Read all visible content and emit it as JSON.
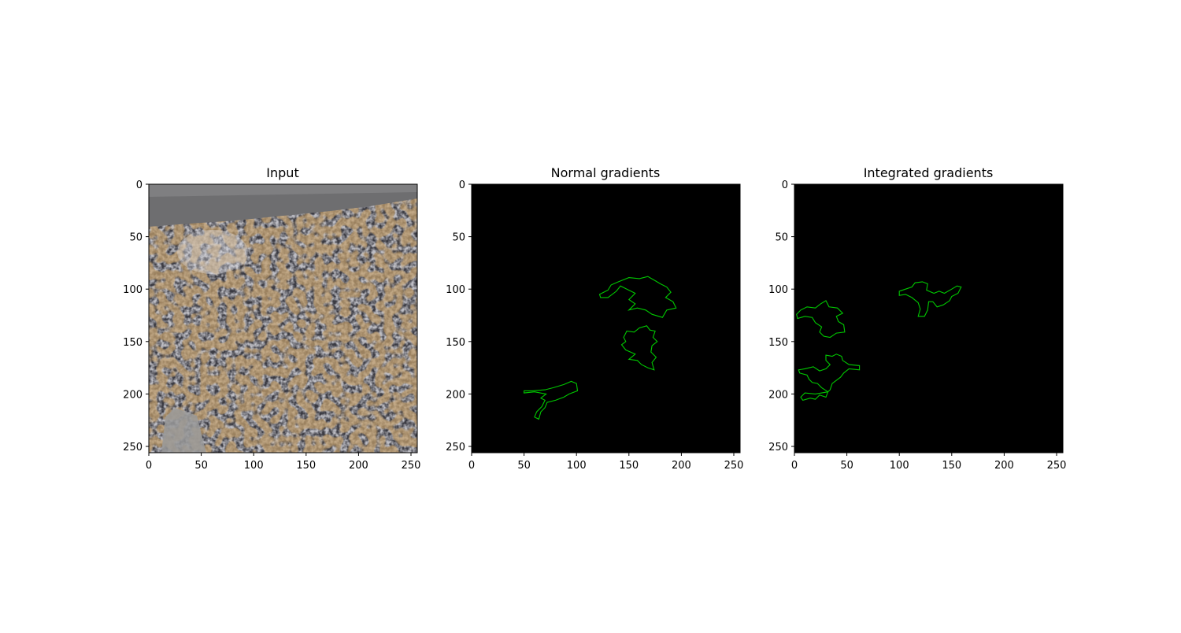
{
  "chart_data": [
    {
      "type": "image",
      "title": "Input",
      "xlim": [
        0,
        256
      ],
      "ylim": [
        256,
        0
      ],
      "xticks": [
        0,
        50,
        100,
        150,
        200,
        250
      ],
      "yticks": [
        0,
        50,
        100,
        150,
        200,
        250
      ],
      "content": "photo of crushed metallic ore fragments",
      "colors": {
        "fragments": "#c8c8d0",
        "dark": "#2a2a30",
        "rust": "#8a5a2a",
        "top_band": "#707070"
      }
    },
    {
      "type": "image",
      "title": "Normal gradients",
      "xlim": [
        0,
        256
      ],
      "ylim": [
        256,
        0
      ],
      "xticks": [
        0,
        50,
        100,
        150,
        200,
        250
      ],
      "yticks": [
        0,
        50,
        100,
        150,
        200,
        250
      ],
      "background": "#000000",
      "contour_color": "#00c800",
      "regions": [
        {
          "points": [
            [
              122,
              105
            ],
            [
              130,
              101
            ],
            [
              133,
              96
            ],
            [
              140,
              93
            ],
            [
              145,
              91
            ],
            [
              150,
              89
            ],
            [
              160,
              90
            ],
            [
              168,
              88
            ],
            [
              175,
              92
            ],
            [
              180,
              95
            ],
            [
              186,
              98
            ],
            [
              190,
              103
            ],
            [
              185,
              108
            ],
            [
              192,
              112
            ],
            [
              195,
              118
            ],
            [
              186,
              120
            ],
            [
              182,
              127
            ],
            [
              172,
              124
            ],
            [
              166,
              120
            ],
            [
              158,
              118
            ],
            [
              150,
              120
            ],
            [
              156,
              114
            ],
            [
              150,
              110
            ],
            [
              156,
              104
            ],
            [
              148,
              100
            ],
            [
              142,
              97
            ],
            [
              138,
              102
            ],
            [
              130,
              108
            ],
            [
              123,
              108
            ]
          ]
        },
        {
          "points": [
            [
              145,
              146
            ],
            [
              148,
              140
            ],
            [
              155,
              141
            ],
            [
              160,
              137
            ],
            [
              167,
              135
            ],
            [
              170,
              139
            ],
            [
              175,
              140
            ],
            [
              173,
              146
            ],
            [
              177,
              150
            ],
            [
              172,
              154
            ],
            [
              171,
              160
            ],
            [
              176,
              165
            ],
            [
              172,
              170
            ],
            [
              174,
              177
            ],
            [
              168,
              175
            ],
            [
              162,
              172
            ],
            [
              158,
              168
            ],
            [
              150,
              167
            ],
            [
              156,
              162
            ],
            [
              147,
              158
            ],
            [
              143,
              153
            ],
            [
              147,
              150
            ]
          ]
        },
        {
          "points": [
            [
              50,
              197
            ],
            [
              58,
              197
            ],
            [
              70,
              196
            ],
            [
              78,
              194
            ],
            [
              88,
              191
            ],
            [
              95,
              188
            ],
            [
              100,
              190
            ],
            [
              101,
              197
            ],
            [
              93,
              200
            ],
            [
              88,
              203
            ],
            [
              80,
              206
            ],
            [
              72,
              208
            ],
            [
              70,
              213
            ],
            [
              66,
              217
            ],
            [
              64,
              224
            ],
            [
              60,
              222
            ],
            [
              62,
              217
            ],
            [
              67,
              212
            ],
            [
              70,
              206
            ],
            [
              66,
              204
            ],
            [
              71,
              200
            ],
            [
              60,
              198
            ],
            [
              50,
              199
            ]
          ]
        }
      ]
    },
    {
      "type": "image",
      "title": "Integrated gradients",
      "xlim": [
        0,
        256
      ],
      "ylim": [
        256,
        0
      ],
      "xticks": [
        0,
        50,
        100,
        150,
        200,
        250
      ],
      "yticks": [
        0,
        50,
        100,
        150,
        200,
        250
      ],
      "background": "#000000",
      "contour_color": "#00c800",
      "regions": [
        {
          "points": [
            [
              100,
              102
            ],
            [
              106,
              100
            ],
            [
              112,
              98
            ],
            [
              115,
              94
            ],
            [
              122,
              93
            ],
            [
              127,
              95
            ],
            [
              126,
              101
            ],
            [
              133,
              104
            ],
            [
              138,
              102
            ],
            [
              143,
              104
            ],
            [
              150,
              100
            ],
            [
              155,
              97
            ],
            [
              159,
              98
            ],
            [
              156,
              104
            ],
            [
              150,
              107
            ],
            [
              148,
              111
            ],
            [
              142,
              115
            ],
            [
              136,
              117
            ],
            [
              132,
              112
            ],
            [
              128,
              112
            ],
            [
              127,
              120
            ],
            [
              124,
              126
            ],
            [
              118,
              126
            ],
            [
              120,
              119
            ],
            [
              118,
              113
            ],
            [
              112,
              108
            ],
            [
              106,
              105
            ],
            [
              100,
              106
            ]
          ]
        },
        {
          "points": [
            [
              2,
              124
            ],
            [
              6,
              120
            ],
            [
              12,
              117
            ],
            [
              20,
              118
            ],
            [
              25,
              114
            ],
            [
              30,
              111
            ],
            [
              33,
              117
            ],
            [
              41,
              118
            ],
            [
              46,
              123
            ],
            [
              40,
              126
            ],
            [
              42,
              131
            ],
            [
              47,
              134
            ],
            [
              48,
              141
            ],
            [
              40,
              142
            ],
            [
              34,
              146
            ],
            [
              28,
              145
            ],
            [
              24,
              141
            ],
            [
              26,
              136
            ],
            [
              20,
              132
            ],
            [
              17,
              127
            ],
            [
              10,
              126
            ],
            [
              3,
              128
            ]
          ]
        },
        {
          "points": [
            [
              30,
              163
            ],
            [
              36,
              164
            ],
            [
              40,
              162
            ],
            [
              45,
              164
            ],
            [
              46,
              168
            ],
            [
              52,
              172
            ],
            [
              62,
              173
            ],
            [
              62,
              177
            ],
            [
              52,
              176
            ],
            [
              47,
              180
            ],
            [
              44,
              184
            ],
            [
              40,
              187
            ],
            [
              36,
              190
            ],
            [
              34,
              196
            ],
            [
              32,
              198
            ],
            [
              26,
              199
            ],
            [
              20,
              200
            ],
            [
              10,
              199
            ],
            [
              6,
              203
            ],
            [
              8,
              206
            ],
            [
              15,
              204
            ],
            [
              20,
              205
            ],
            [
              24,
              201
            ],
            [
              30,
              203
            ],
            [
              32,
              198
            ],
            [
              26,
              194
            ],
            [
              22,
              190
            ],
            [
              17,
              189
            ],
            [
              14,
              186
            ],
            [
              12,
              182
            ],
            [
              5,
              180
            ],
            [
              4,
              177
            ],
            [
              10,
              176
            ],
            [
              18,
              174
            ],
            [
              24,
              178
            ],
            [
              30,
              176
            ],
            [
              34,
              172
            ],
            [
              30,
              168
            ]
          ]
        }
      ]
    }
  ]
}
